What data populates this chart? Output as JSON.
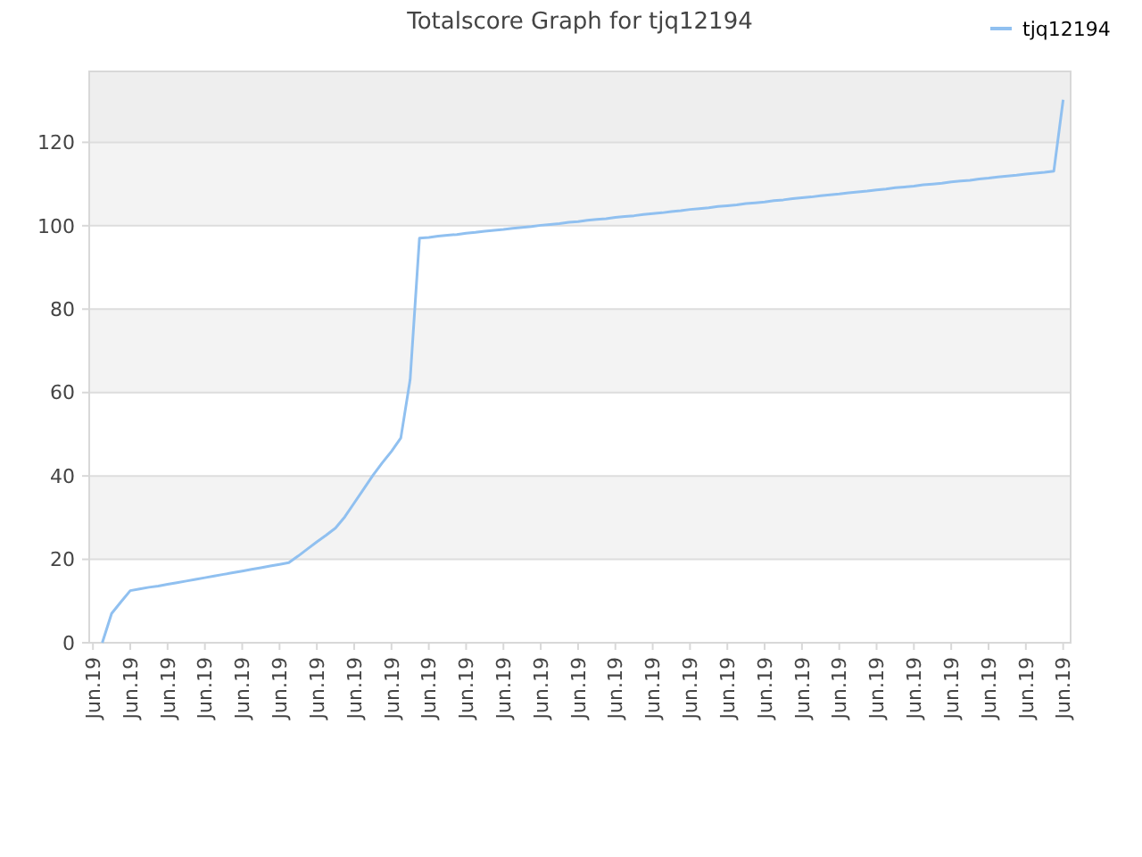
{
  "chart_data": {
    "type": "line",
    "title": "Totalscore Graph for tjq12194",
    "categories": [
      "Jun.19",
      null,
      null,
      null,
      "Jun.19",
      null,
      null,
      null,
      "Jun.19",
      null,
      null,
      null,
      "Jun.19",
      null,
      null,
      null,
      "Jun.19",
      null,
      null,
      null,
      "Jun.19",
      null,
      null,
      null,
      "Jun.19",
      null,
      null,
      null,
      "Jun.19",
      null,
      null,
      null,
      "Jun.19",
      null,
      null,
      null,
      "Jun.19",
      null,
      null,
      null,
      "Jun.19",
      null,
      null,
      null,
      "Jun.19",
      null,
      null,
      null,
      "Jun.19",
      null,
      null,
      null,
      "Jun.19",
      null,
      null,
      null,
      "Jun.19",
      null,
      null,
      null,
      "Jun.19",
      null,
      null,
      null,
      "Jun.19",
      null,
      null,
      null,
      "Jun.19",
      null,
      null,
      null,
      "Jun.19",
      null,
      null,
      null,
      "Jun.19",
      null,
      null,
      null,
      "Jun.19",
      null,
      null,
      null,
      "Jun.19",
      null,
      null,
      null,
      "Jun.19",
      null,
      null,
      null,
      "Jun.19",
      null,
      null,
      null,
      "Jun.19",
      null,
      null,
      null,
      "Jun.19",
      null,
      null,
      null,
      "Jun.19"
    ],
    "ylim": [
      0,
      137
    ],
    "yticks": [
      0,
      20,
      40,
      60,
      80,
      100,
      120
    ],
    "grid": "y",
    "legend": "top right",
    "line_style": "solid",
    "bands": [
      {
        "axis": "y",
        "from": 20,
        "to": 40,
        "color": "#f3f3f3"
      },
      {
        "axis": "y",
        "from": 60,
        "to": 80,
        "color": "#f3f3f3"
      },
      {
        "axis": "y",
        "from": 100,
        "to": 120,
        "color": "#f3f3f3"
      },
      {
        "axis": "y",
        "from": 120,
        "to": 137,
        "color": "#eeeeee"
      }
    ],
    "series": [
      {
        "name": "tjq12194",
        "color": "#90c0f0",
        "values": [
          null,
          0,
          7.0,
          9.8,
          12.5,
          12.9,
          13.3,
          13.6,
          14.0,
          14.4,
          14.8,
          15.2,
          15.6,
          16.0,
          16.4,
          16.8,
          17.2,
          17.6,
          18.0,
          18.4,
          18.8,
          19.2,
          20.8,
          22.5,
          24.2,
          25.8,
          27.5,
          30.2,
          33.5,
          36.8,
          40.1,
          43.1,
          45.9,
          49.1,
          63.1,
          97,
          97.2,
          97.5,
          97.7,
          97.9,
          98.2,
          98.4,
          98.7,
          98.9,
          99.1,
          99.4,
          99.6,
          99.8,
          100.1,
          100.3,
          100.5,
          100.8,
          101.0,
          101.3,
          101.5,
          101.7,
          102.0,
          102.2,
          102.4,
          102.7,
          102.9,
          103.1,
          103.4,
          103.6,
          103.9,
          104.1,
          104.3,
          104.6,
          104.8,
          105.0,
          105.3,
          105.5,
          105.7,
          106.0,
          106.2,
          106.5,
          106.7,
          106.9,
          107.2,
          107.4,
          107.6,
          107.9,
          108.1,
          108.3,
          108.6,
          108.8,
          109.1,
          109.3,
          109.5,
          109.8,
          110.0,
          110.2,
          110.5,
          110.7,
          110.9,
          111.2,
          111.4,
          111.7,
          111.9,
          112.1,
          112.4,
          112.6,
          112.8,
          113.1,
          130.2
        ]
      }
    ]
  }
}
